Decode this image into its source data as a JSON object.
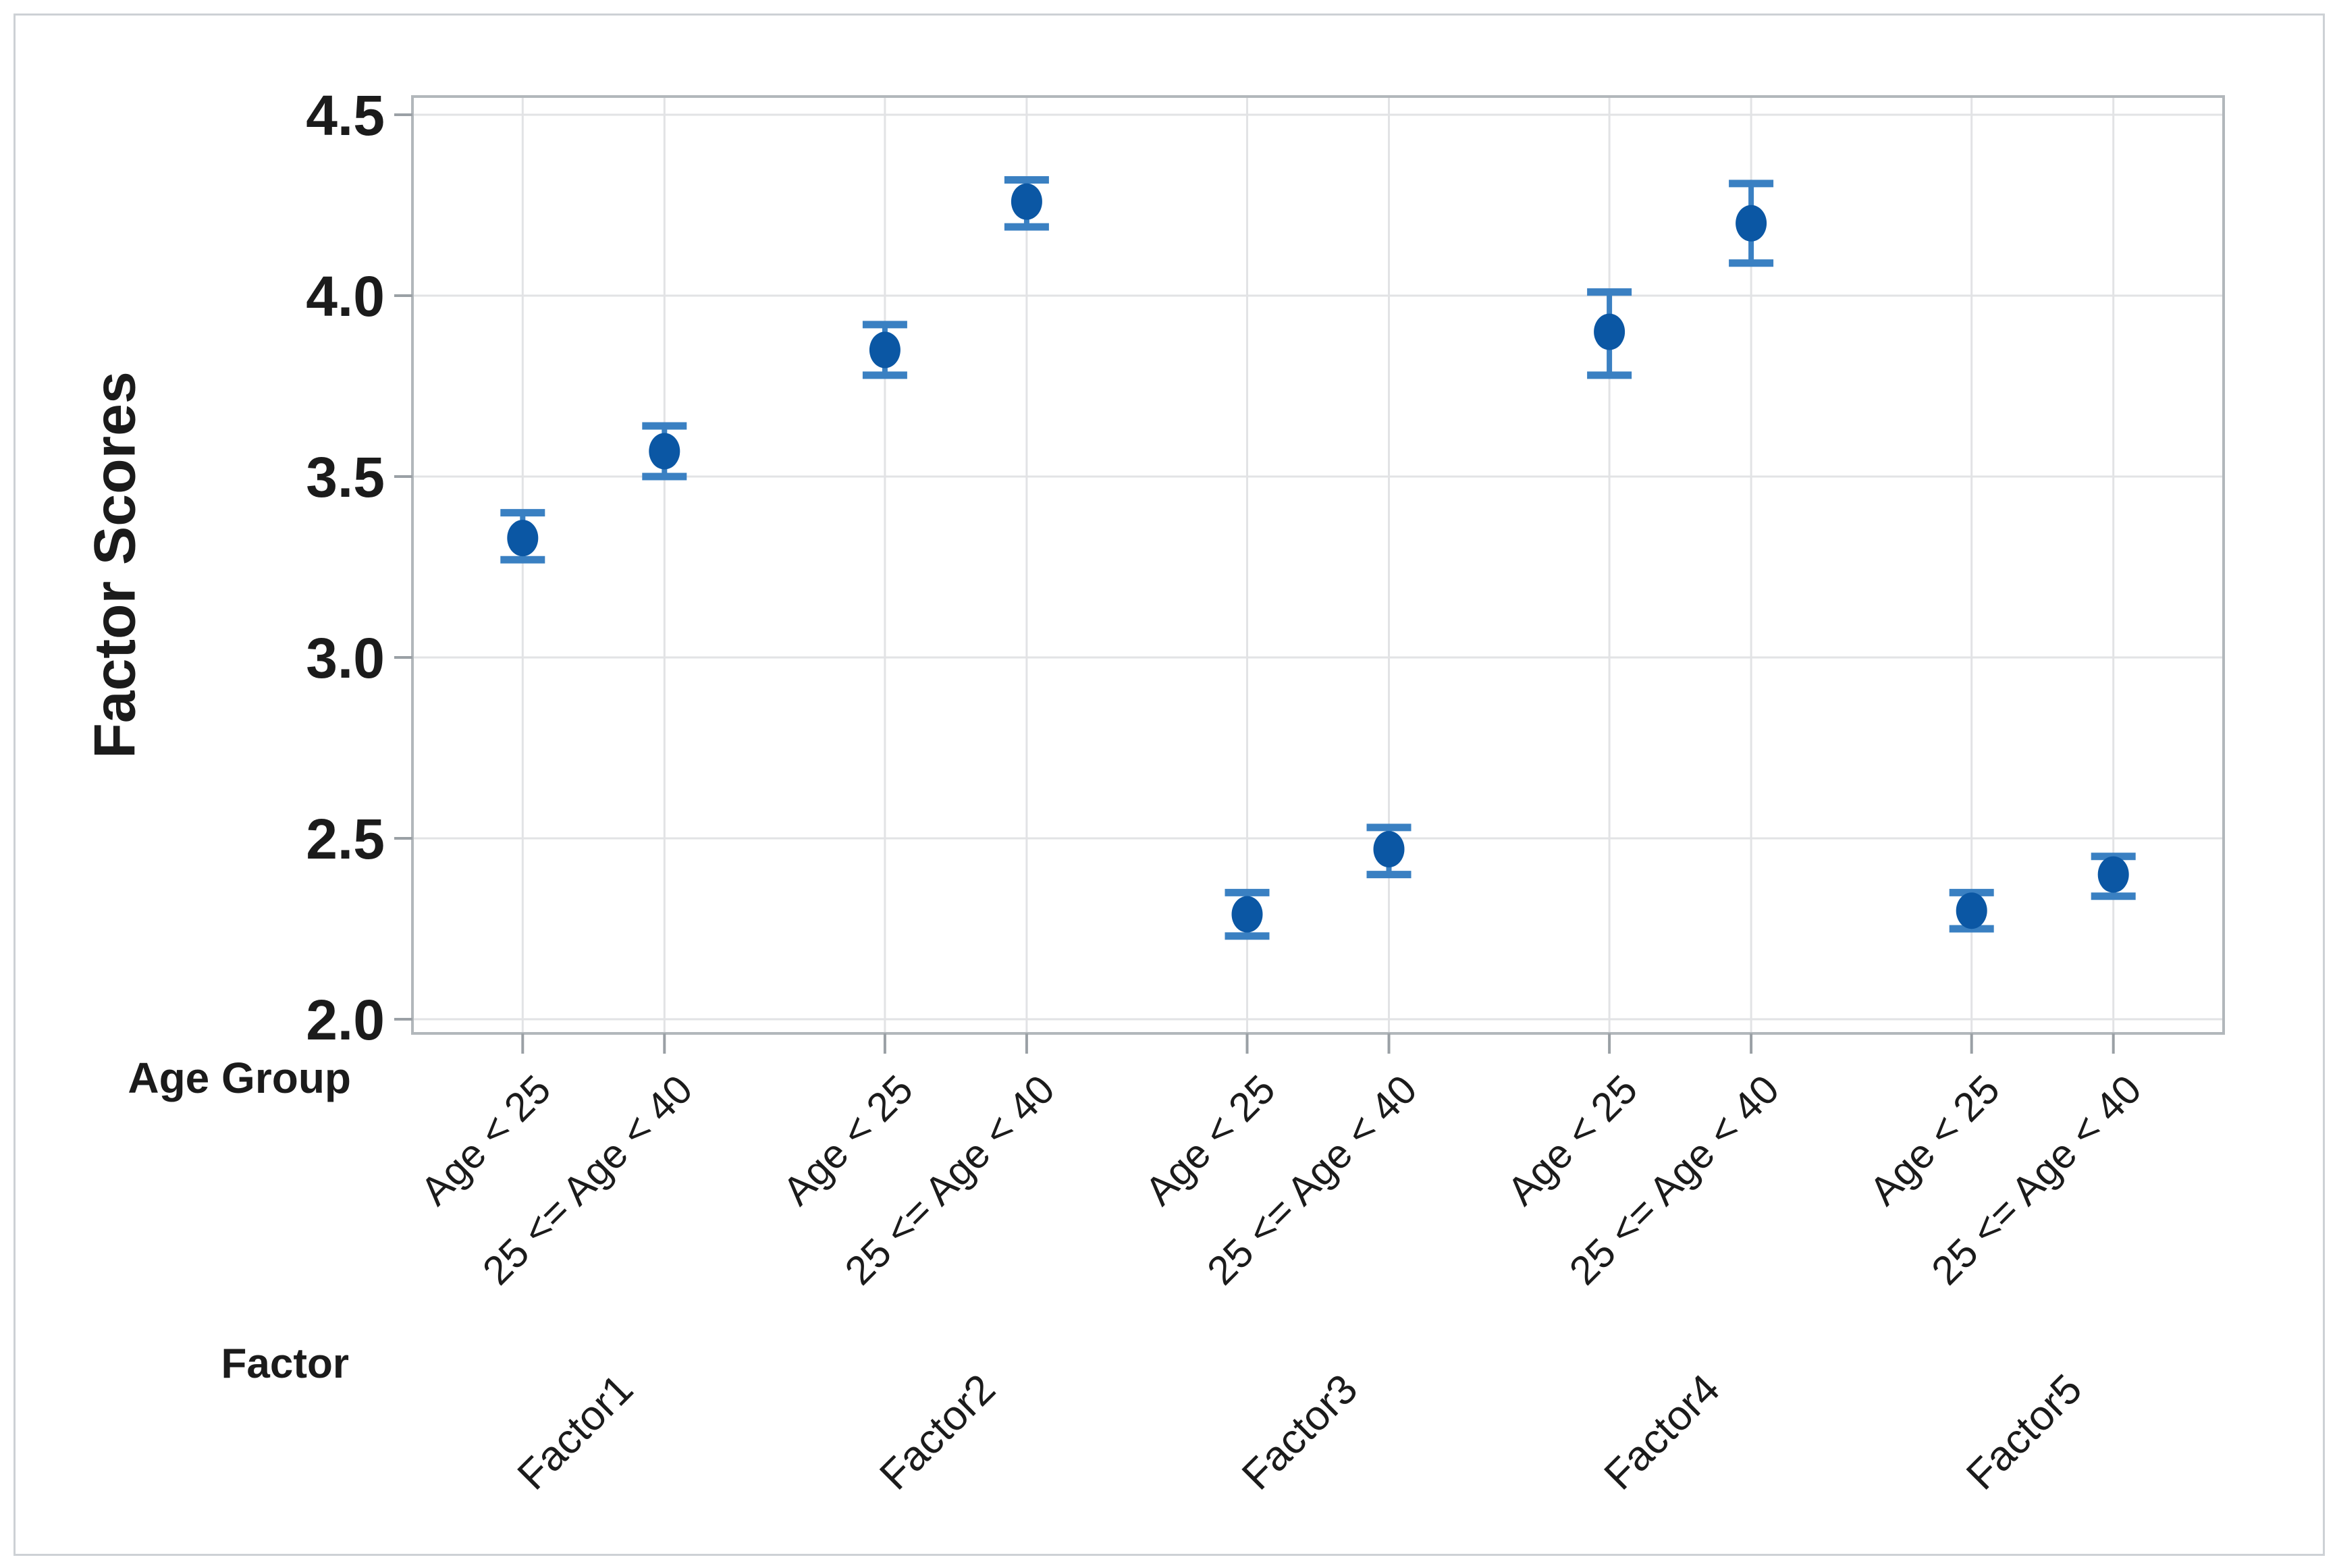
{
  "chart_data": {
    "type": "scatter",
    "subtype": "interval-plot-mean-with-95ci",
    "title": "",
    "ylabel": "Factor Scores",
    "x_axis_rows": [
      "Age Group",
      "Factor"
    ],
    "age_group_labels": [
      "Age < 25",
      "25 <= Age < 40"
    ],
    "y_ticks": [
      {
        "label": "4.5",
        "value": 4.5
      },
      {
        "label": "4.0",
        "value": 4.0
      },
      {
        "label": "3.5",
        "value": 3.5
      },
      {
        "label": "3.0",
        "value": 3.0
      },
      {
        "label": "2.5",
        "value": 2.5
      },
      {
        "label": "2.0",
        "value": 2.0
      }
    ],
    "ylim": [
      1.96,
      4.56
    ],
    "grid": "on",
    "legend": "none",
    "groups": [
      {
        "factor": "Factor1",
        "points": [
          {
            "age_group": "Age < 25",
            "mean": 3.33,
            "ci_low": 3.27,
            "ci_high": 3.4
          },
          {
            "age_group": "25 <= Age < 40",
            "mean": 3.57,
            "ci_low": 3.5,
            "ci_high": 3.64
          }
        ]
      },
      {
        "factor": "Factor2",
        "points": [
          {
            "age_group": "Age < 25",
            "mean": 3.85,
            "ci_low": 3.78,
            "ci_high": 3.92
          },
          {
            "age_group": "25 <= Age < 40",
            "mean": 4.26,
            "ci_low": 4.19,
            "ci_high": 4.32
          }
        ]
      },
      {
        "factor": "Factor3",
        "points": [
          {
            "age_group": "Age < 25",
            "mean": 2.29,
            "ci_low": 2.23,
            "ci_high": 2.35
          },
          {
            "age_group": "25 <= Age < 40",
            "mean": 2.47,
            "ci_low": 2.4,
            "ci_high": 2.53
          }
        ]
      },
      {
        "factor": "Factor4",
        "points": [
          {
            "age_group": "Age < 25",
            "mean": 3.9,
            "ci_low": 3.78,
            "ci_high": 4.01
          },
          {
            "age_group": "25 <= Age < 40",
            "mean": 4.2,
            "ci_low": 4.09,
            "ci_high": 4.31
          }
        ]
      },
      {
        "factor": "Factor5",
        "points": [
          {
            "age_group": "Age < 25",
            "mean": 2.3,
            "ci_low": 2.25,
            "ci_high": 2.35
          },
          {
            "age_group": "25 <= Age < 40",
            "mean": 2.4,
            "ci_low": 2.34,
            "ci_high": 2.45
          }
        ]
      }
    ],
    "colors": {
      "marker": "#0b57a4",
      "interval": "#3a80c2",
      "grid": "#e2e3e5",
      "plot_border": "#b2b7bb",
      "tick": "#9aa0a5",
      "text": "#1b1b1b",
      "outer_border": "#cdd1d5",
      "background": "#ffffff"
    }
  }
}
